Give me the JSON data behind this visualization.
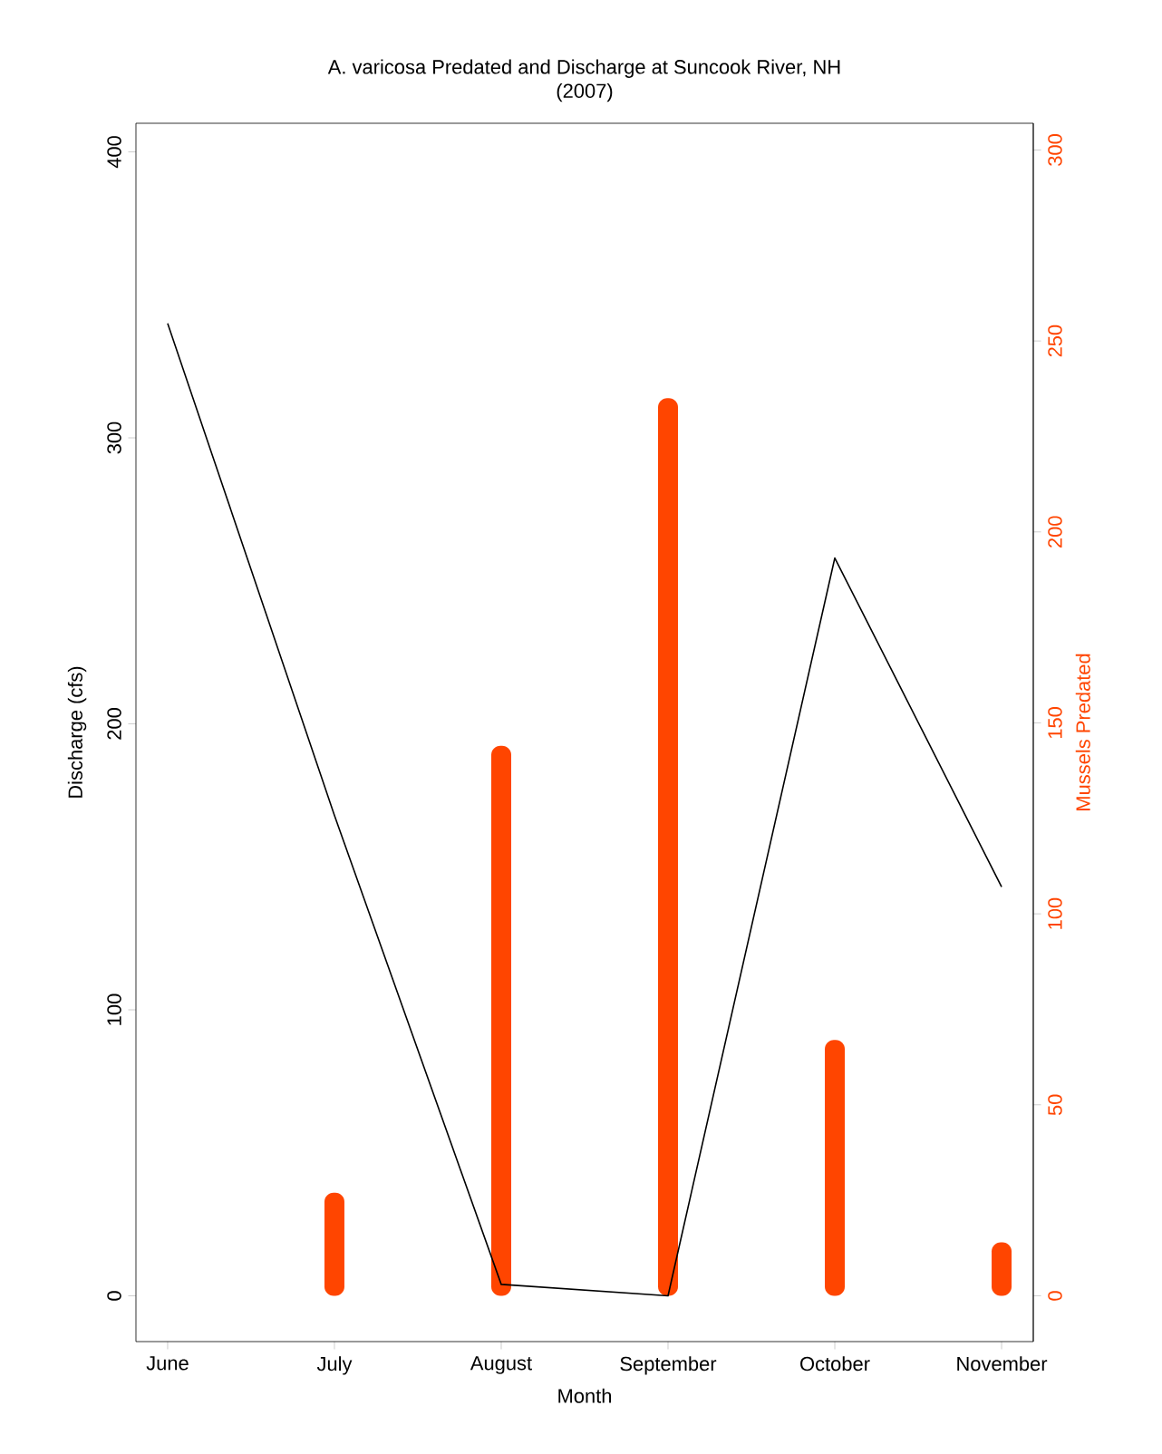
{
  "chart_data": {
    "type": "line",
    "title": "A. varicosa Predated and Discharge at Suncook River, NH",
    "subtitle": "(2007)",
    "xlabel": "Month",
    "ylabel": "Discharge (cfs)",
    "y2label": "Mussels Predated",
    "categories": [
      "June",
      "July",
      "August",
      "September",
      "October",
      "November"
    ],
    "series": [
      {
        "color": "#000000",
        "values": [
          340,
          168,
          4,
          0,
          258,
          143
        ]
      },
      {
        "type": "bar",
        "axis": "y2",
        "color": "#ff4500",
        "values": [
          null,
          27,
          144,
          235,
          67,
          14
        ]
      }
    ],
    "ylim": [
      -16,
      410
    ],
    "yticks": [
      0,
      100,
      200,
      300,
      400
    ],
    "y2lim": [
      -12,
      307
    ],
    "y2ticks": [
      0,
      50,
      100,
      150,
      200,
      250,
      300
    ],
    "grid": false
  }
}
